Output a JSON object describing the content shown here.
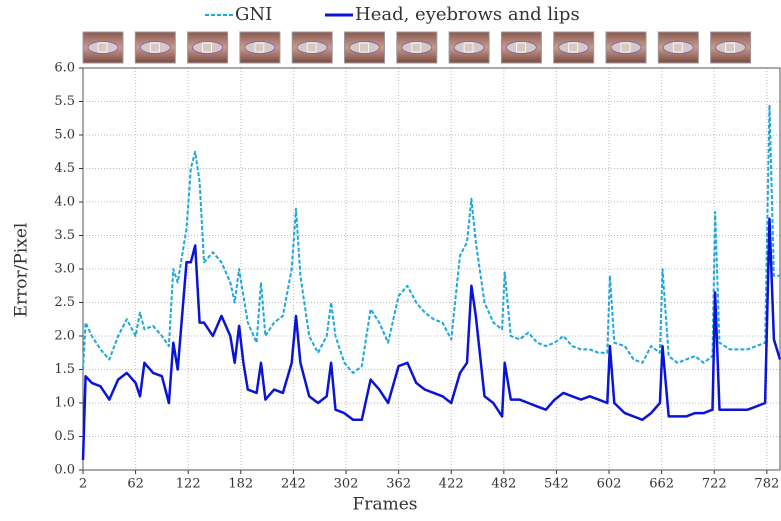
{
  "chart_data": {
    "type": "line",
    "x_label": "Frames",
    "y_label": "Error/Pixel",
    "x": [
      2,
      5,
      12,
      22,
      32,
      42,
      52,
      62,
      67,
      72,
      82,
      92,
      100,
      105,
      110,
      115,
      120,
      125,
      130,
      135,
      140,
      150,
      160,
      170,
      175,
      180,
      185,
      190,
      200,
      205,
      210,
      220,
      230,
      240,
      245,
      250,
      260,
      270,
      280,
      285,
      290,
      300,
      310,
      320,
      330,
      340,
      350,
      362,
      372,
      382,
      392,
      402,
      412,
      422,
      432,
      440,
      445,
      450,
      460,
      470,
      480,
      483,
      490,
      500,
      510,
      520,
      530,
      540,
      550,
      560,
      570,
      580,
      590,
      600,
      603,
      608,
      620,
      630,
      640,
      650,
      660,
      663,
      670,
      680,
      690,
      700,
      710,
      720,
      723,
      728,
      740,
      750,
      760,
      770,
      780,
      785,
      790,
      797
    ],
    "series": [
      {
        "name": "GNI",
        "color": "#1ea7dc",
        "dashed": true,
        "values": [
          1.5,
          2.2,
          2.0,
          1.8,
          1.65,
          2.0,
          2.25,
          2.0,
          2.35,
          2.1,
          2.15,
          2.0,
          1.85,
          3.0,
          2.8,
          3.2,
          3.6,
          4.5,
          4.75,
          4.3,
          3.1,
          3.25,
          3.1,
          2.8,
          2.5,
          3.0,
          2.6,
          2.2,
          1.9,
          2.8,
          2.0,
          2.2,
          2.3,
          3.0,
          3.9,
          2.9,
          2.0,
          1.75,
          2.0,
          2.5,
          2.0,
          1.6,
          1.45,
          1.55,
          2.4,
          2.2,
          1.9,
          2.6,
          2.75,
          2.5,
          2.35,
          2.25,
          2.2,
          1.95,
          3.2,
          3.4,
          4.05,
          3.4,
          2.5,
          2.2,
          2.1,
          2.95,
          2.0,
          1.95,
          2.05,
          1.9,
          1.85,
          1.9,
          2.0,
          1.85,
          1.8,
          1.8,
          1.75,
          1.75,
          2.9,
          1.9,
          1.85,
          1.65,
          1.6,
          1.85,
          1.75,
          3.0,
          1.7,
          1.6,
          1.65,
          1.7,
          1.6,
          1.7,
          3.85,
          1.9,
          1.8,
          1.8,
          1.8,
          1.85,
          1.9,
          5.45,
          2.9,
          2.9
        ]
      },
      {
        "name": "Head, eyebrows and lips",
        "color": "#0a14d8",
        "dashed": false,
        "values": [
          0.15,
          1.4,
          1.3,
          1.25,
          1.05,
          1.35,
          1.45,
          1.3,
          1.1,
          1.6,
          1.45,
          1.4,
          1.0,
          1.9,
          1.5,
          2.3,
          3.1,
          3.1,
          3.35,
          2.2,
          2.2,
          2.0,
          2.3,
          2.0,
          1.6,
          2.15,
          1.6,
          1.2,
          1.15,
          1.6,
          1.05,
          1.2,
          1.15,
          1.6,
          2.3,
          1.6,
          1.1,
          1.0,
          1.1,
          1.6,
          0.9,
          0.85,
          0.75,
          0.75,
          1.35,
          1.2,
          1.0,
          1.55,
          1.6,
          1.3,
          1.2,
          1.15,
          1.1,
          1.0,
          1.45,
          1.6,
          2.75,
          2.3,
          1.1,
          1.0,
          0.8,
          1.6,
          1.05,
          1.05,
          1.0,
          0.95,
          0.9,
          1.05,
          1.15,
          1.1,
          1.05,
          1.1,
          1.05,
          1.0,
          1.85,
          1.0,
          0.85,
          0.8,
          0.75,
          0.85,
          1.0,
          1.85,
          0.8,
          0.8,
          0.8,
          0.85,
          0.85,
          0.9,
          2.65,
          0.9,
          0.9,
          0.9,
          0.9,
          0.95,
          1.0,
          3.75,
          1.95,
          1.65
        ]
      }
    ],
    "xlim": [
      2,
      797
    ],
    "ylim": [
      0,
      6
    ],
    "xticks": [
      2,
      62,
      122,
      182,
      242,
      302,
      362,
      422,
      482,
      542,
      602,
      662,
      722,
      782
    ],
    "yticks": [
      {
        "value": 0,
        "label": "0.0"
      },
      {
        "value": 0.5,
        "label": "0.5"
      },
      {
        "value": 1,
        "label": "1.0"
      },
      {
        "value": 1.5,
        "label": "1.5"
      },
      {
        "value": 2,
        "label": "2.0"
      },
      {
        "value": 2.5,
        "label": "2.5"
      },
      {
        "value": 3,
        "label": "3.0"
      },
      {
        "value": 3.5,
        "label": "3.5"
      },
      {
        "value": 4,
        "label": "4.0"
      },
      {
        "value": 4.5,
        "label": "4.5"
      },
      {
        "value": 5,
        "label": "5.0"
      },
      {
        "value": 5.5,
        "label": "5.5"
      },
      {
        "value": 6,
        "label": "6.0"
      }
    ],
    "grid": true
  }
}
